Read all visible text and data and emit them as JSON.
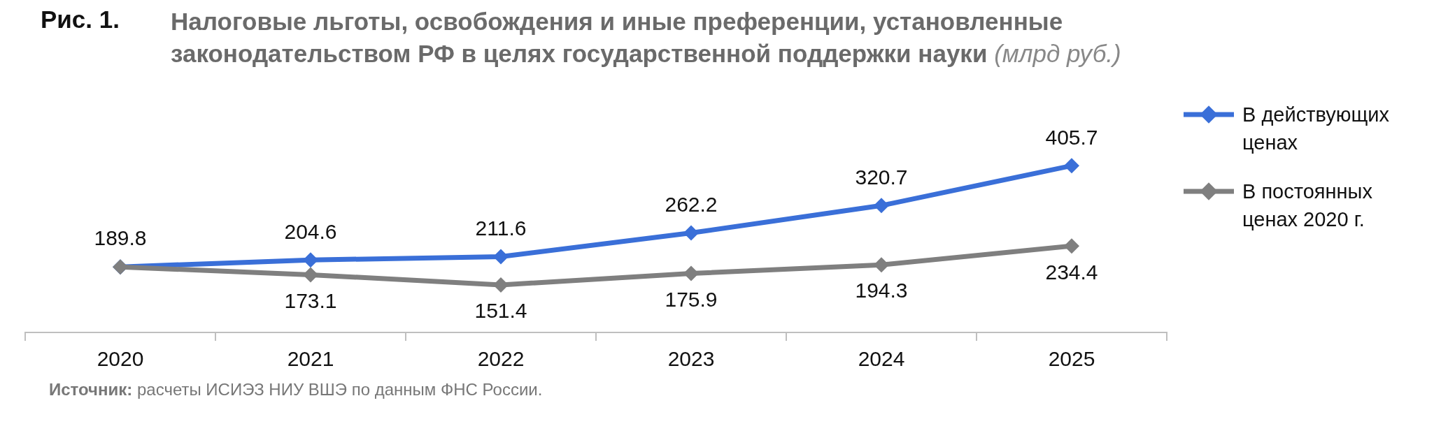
{
  "chart_data": {
    "type": "line",
    "title": "Налоговые льготы, освобождения и иные преференции, установленные законодательством РФ в целях государственной поддержки науки",
    "subtitle": "(млрд руб.)",
    "annotations": [
      "Рис. 1.",
      "Источник: расчеты ИСИЭЗ НИУ ВШЭ по данным ФНС России."
    ],
    "categories": [
      "2020",
      "2021",
      "2022",
      "2023",
      "2024",
      "2025"
    ],
    "series": [
      {
        "name": "В действующих ценах",
        "color": "#3a6fd8",
        "values": [
          189.8,
          204.6,
          211.6,
          262.2,
          320.7,
          405.7
        ],
        "value_labels": [
          "189.8",
          "204.6",
          "211.6",
          "262.2",
          "320.7",
          "405.7"
        ]
      },
      {
        "name": "В постоянных ценах 2020 г.",
        "color": "#7f7f7f",
        "values": [
          189.8,
          173.1,
          151.4,
          175.9,
          194.3,
          234.4
        ],
        "value_labels": [
          null,
          "173.1",
          "151.4",
          "175.9",
          "194.3",
          "234.4"
        ]
      }
    ],
    "marker": "diamond",
    "line_style": "solid",
    "grid": false,
    "legend": "right"
  }
}
